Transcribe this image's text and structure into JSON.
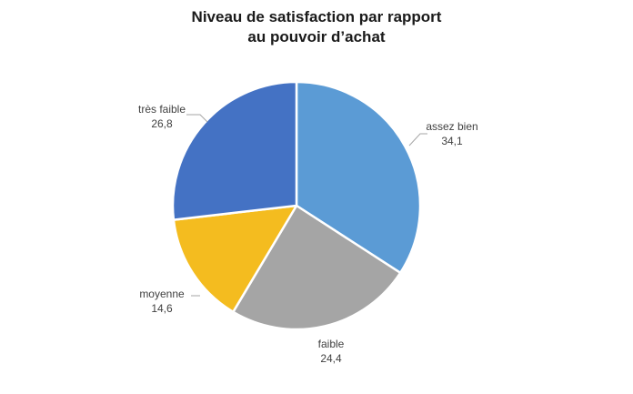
{
  "chart_data": {
    "type": "pie",
    "title_lines": [
      "Niveau de satisfaction par rapport",
      "au pouvoir d’achat"
    ],
    "slices": [
      {
        "label": "assez bien",
        "value": 34.1,
        "value_label": "34,1",
        "color": "#5b9bd5"
      },
      {
        "label": "faible",
        "value": 24.4,
        "value_label": "24,4",
        "color": "#a5a5a5"
      },
      {
        "label": "moyenne",
        "value": 14.6,
        "value_label": "14,6",
        "color": "#f4bc1f"
      },
      {
        "label": "très faible",
        "value": 26.8,
        "value_label": "26,8",
        "color": "#4472c4"
      }
    ],
    "start_angle_deg": 0,
    "direction": "clockwise"
  }
}
